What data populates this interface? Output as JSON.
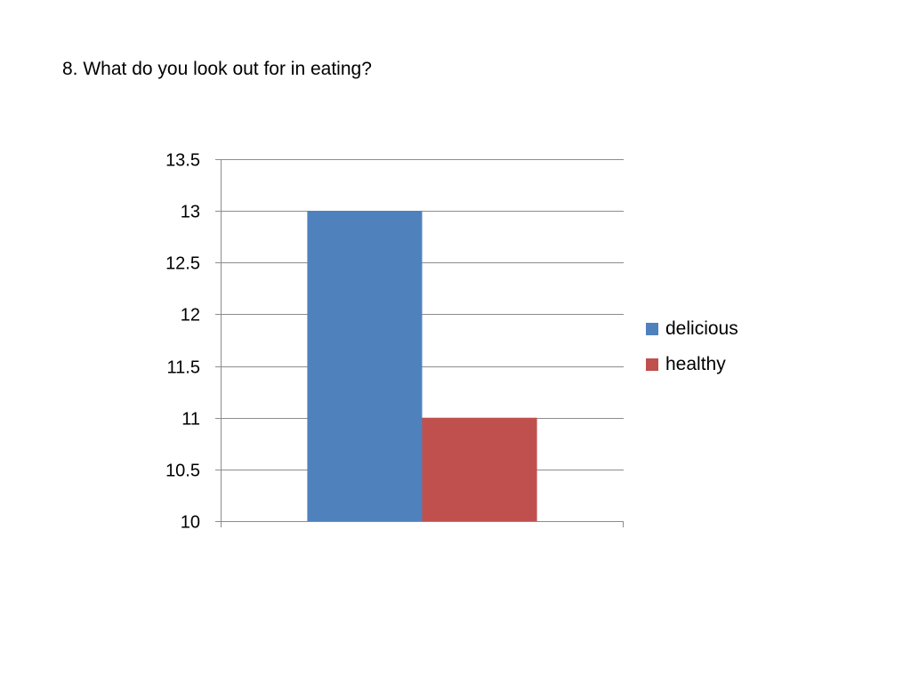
{
  "slide": {
    "title": "8. What do you look out for in eating?"
  },
  "chart_data": {
    "type": "bar",
    "title": "",
    "xlabel": "",
    "ylabel": "",
    "categories": [
      ""
    ],
    "series": [
      {
        "name": "delicious",
        "color": "#4F81BD",
        "values": [
          13
        ]
      },
      {
        "name": "healthy",
        "color": "#C0504D",
        "values": [
          11
        ]
      }
    ],
    "ylim": [
      10,
      13.5
    ],
    "yticks": [
      "10",
      "10.5",
      "11",
      "11.5",
      "12",
      "12.5",
      "13",
      "13.5"
    ],
    "grid": true,
    "legend_position": "right"
  }
}
